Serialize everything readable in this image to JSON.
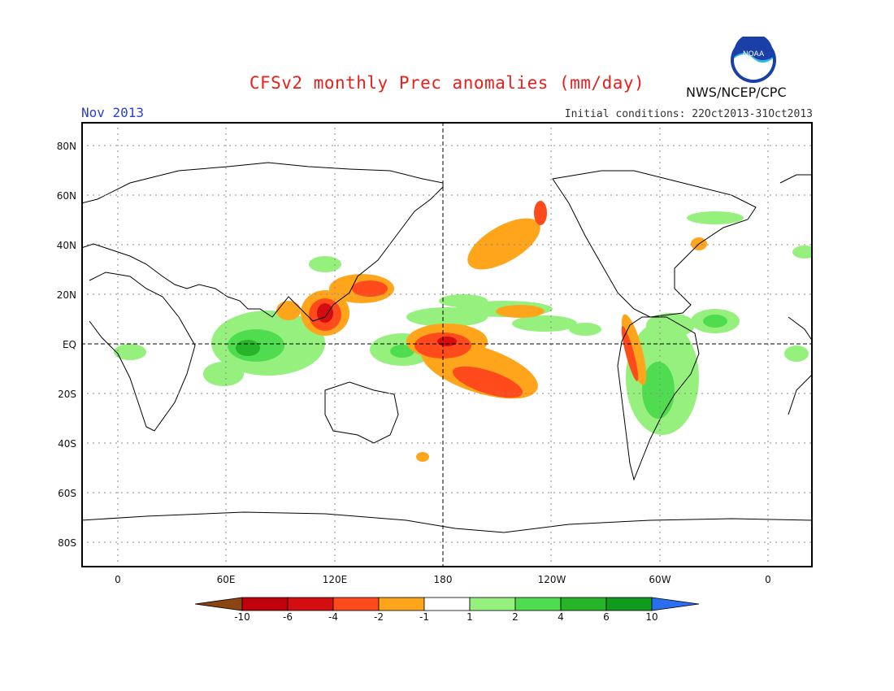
{
  "header": {
    "title": "CFSv2 monthly Prec anomalies (mm/day)",
    "month": "Nov 2013",
    "initial_conditions": "Initial conditions: 22Oct2013-31Oct2013",
    "agency": "NWS/NCEP/CPC",
    "logo_text": "NOAA"
  },
  "axes": {
    "lat_labels": [
      "80N",
      "60N",
      "40N",
      "20N",
      "EQ",
      "20S",
      "40S",
      "60S",
      "80S"
    ],
    "lon_labels": [
      "0",
      "60E",
      "120E",
      "180",
      "120W",
      "60W",
      "0"
    ]
  },
  "colorbar": {
    "labels": [
      "-10",
      "-6",
      "-4",
      "-2",
      "-1",
      "1",
      "2",
      "4",
      "6",
      "10"
    ],
    "colors": [
      "#8b4513",
      "#c0000a",
      "#d40d10",
      "#ff4a1c",
      "#ffa51c",
      "#ffffff",
      "#96f07e",
      "#50dc50",
      "#28b428",
      "#109a1e",
      "#2a6ff0"
    ]
  },
  "colors": {
    "title": "#e8201c",
    "month": "#2a3fd6",
    "dry_light": "#ffa51c",
    "dry_mid": "#ff4a1c",
    "dry_strong": "#d40d10",
    "wet_light": "#96f07e",
    "wet_mid": "#50dc50",
    "wet_strong": "#28b428"
  }
}
